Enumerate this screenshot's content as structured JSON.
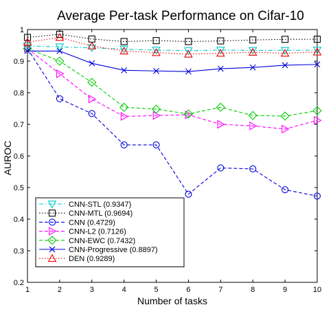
{
  "chart_data": {
    "type": "line",
    "title": "Average Per-task Performance on Cifar-10",
    "xlabel": "Number of tasks",
    "ylabel": "AUROC",
    "xlim": [
      1,
      10
    ],
    "ylim": [
      0.2,
      1.0
    ],
    "x": [
      1,
      2,
      3,
      4,
      5,
      6,
      7,
      8,
      9,
      10
    ],
    "xticks": [
      "1",
      "2",
      "3",
      "4",
      "5",
      "6",
      "7",
      "8",
      "9",
      "10"
    ],
    "yticks": [
      "0.2",
      "0.3",
      "0.4",
      "0.5",
      "0.6",
      "0.7",
      "0.8",
      "0.9",
      "1"
    ],
    "grid": false,
    "legend_position": "bottom-left",
    "series": [
      {
        "name": "CNN-STL (0.9347)",
        "color": "#00c8c8",
        "marker": "triangle-down",
        "dash": "dashdot",
        "values": [
          0.948,
          0.945,
          0.942,
          0.938,
          0.935,
          0.933,
          0.935,
          0.934,
          0.934,
          0.9347
        ]
      },
      {
        "name": "CNN-MTL (0.9694)",
        "color": "#000000",
        "marker": "square",
        "dash": "dotted",
        "values": [
          0.975,
          0.985,
          0.97,
          0.962,
          0.965,
          0.962,
          0.964,
          0.967,
          0.969,
          0.9694
        ]
      },
      {
        "name": "CNN (0.4729)",
        "color": "#0000dd",
        "marker": "circle",
        "dash": "dashed",
        "values": [
          0.94,
          0.781,
          0.734,
          0.635,
          0.635,
          0.479,
          0.562,
          0.559,
          0.493,
          0.4729
        ]
      },
      {
        "name": "CNN-L2 (0.7126)",
        "color": "#ff00ff",
        "marker": "triangle-right",
        "dash": "dashed",
        "values": [
          0.94,
          0.86,
          0.78,
          0.725,
          0.728,
          0.73,
          0.7,
          0.695,
          0.685,
          0.7126
        ]
      },
      {
        "name": "CNN-EWC (0.7432)",
        "color": "#00cc00",
        "marker": "diamond",
        "dash": "dashed",
        "values": [
          0.94,
          0.9,
          0.833,
          0.754,
          0.748,
          0.733,
          0.754,
          0.728,
          0.726,
          0.7432
        ]
      },
      {
        "name": "CNN-Progressive (0.8897)",
        "color": "#0000dd",
        "marker": "x",
        "dash": "solid",
        "values": [
          0.932,
          0.932,
          0.893,
          0.871,
          0.869,
          0.867,
          0.876,
          0.88,
          0.887,
          0.8897
        ]
      },
      {
        "name": "DEN (0.9289)",
        "color": "#ee0000",
        "marker": "triangle-up",
        "dash": "dotted",
        "values": [
          0.96,
          0.975,
          0.948,
          0.932,
          0.927,
          0.922,
          0.925,
          0.928,
          0.925,
          0.9289
        ]
      }
    ]
  }
}
